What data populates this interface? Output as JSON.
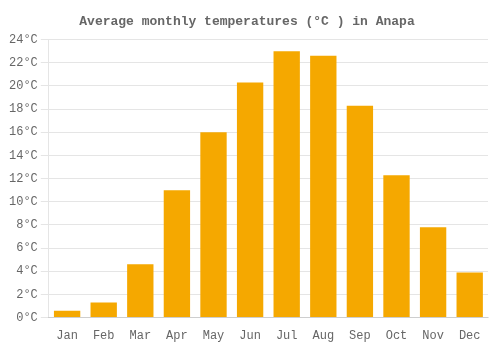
{
  "chart_data": {
    "type": "bar",
    "title": "Average monthly temperatures (°C ) in Anapa",
    "categories": [
      "Jan",
      "Feb",
      "Mar",
      "Apr",
      "May",
      "Jun",
      "Jul",
      "Aug",
      "Sep",
      "Oct",
      "Nov",
      "Dec"
    ],
    "values": [
      0.6,
      1.3,
      4.6,
      11.0,
      16.0,
      20.3,
      23.0,
      22.6,
      18.3,
      12.3,
      7.8,
      3.9
    ],
    "color": "#F5A800",
    "ylim": [
      0,
      24
    ],
    "yticks": [
      {
        "value": 0,
        "label": "0°C"
      },
      {
        "value": 2,
        "label": "2°C"
      },
      {
        "value": 4,
        "label": "4°C"
      },
      {
        "value": 6,
        "label": "6°C"
      },
      {
        "value": 8,
        "label": "8°C"
      },
      {
        "value": 10,
        "label": "10°C"
      },
      {
        "value": 12,
        "label": "12°C"
      },
      {
        "value": 14,
        "label": "14°C"
      },
      {
        "value": 16,
        "label": "16°C"
      },
      {
        "value": 18,
        "label": "18°C"
      },
      {
        "value": 20,
        "label": "20°C"
      },
      {
        "value": 22,
        "label": "22°C"
      },
      {
        "value": 24,
        "label": "24°C"
      }
    ],
    "grid": true
  }
}
